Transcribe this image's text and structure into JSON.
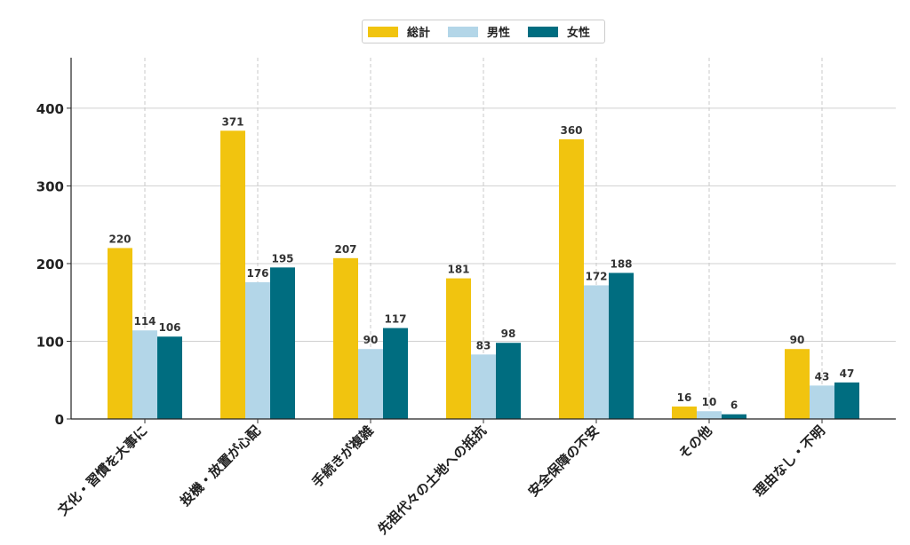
{
  "chart_data": {
    "type": "bar",
    "categories": [
      "文化・習慣を大事に",
      "投機・放置が心配",
      "手続きが複雑",
      "先祖代々の土地への抵抗",
      "安全保障の不安",
      "その他",
      "理由なし・不明"
    ],
    "series": [
      {
        "name": "総計",
        "color": "#f1c40f",
        "values": [
          220,
          371,
          207,
          181,
          360,
          16,
          90
        ]
      },
      {
        "name": "男性",
        "color": "#b3d6e8",
        "values": [
          114,
          176,
          90,
          83,
          172,
          10,
          43
        ]
      },
      {
        "name": "女性",
        "color": "#006d80",
        "values": [
          106,
          195,
          117,
          98,
          188,
          6,
          47
        ]
      }
    ],
    "yticks": [
      0,
      100,
      200,
      300,
      400
    ],
    "ylim": [
      0,
      465
    ],
    "grid": true,
    "legend_position": "top-center"
  }
}
